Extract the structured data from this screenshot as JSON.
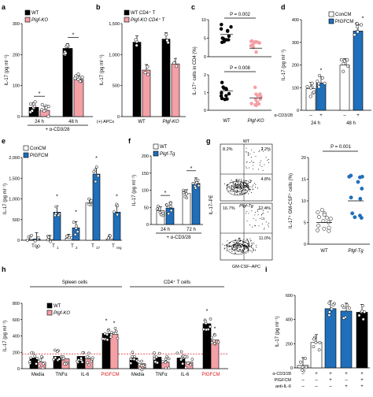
{
  "colors": {
    "wt": "#000000",
    "ko": "#f4a0a6",
    "ko_light": "#f7b8bc",
    "con": "#ffffff",
    "pigf": "#1f6fba",
    "dash": "#e23b3b",
    "pigf_label": "#d7191c",
    "facs_high": "#000000"
  },
  "chart_data": [
    {
      "panel": "a",
      "type": "bar",
      "ylabel": "IL-17 (pg ml⁻¹)",
      "ylim": [
        0,
        300
      ],
      "yticks": [
        "0",
        "100",
        "200",
        "300"
      ],
      "legend": [
        "WT",
        "Plgf-KO"
      ],
      "categories": [
        "24 h",
        "48 h"
      ],
      "footer": "+ α-CD3/28",
      "sig": [
        "*",
        "*"
      ],
      "series": [
        {
          "name": "WT",
          "values": [
            30,
            220
          ]
        },
        {
          "name": "Plgf-KO",
          "values": [
            20,
            120
          ]
        }
      ]
    },
    {
      "panel": "b",
      "type": "bar",
      "ylabel": "IL-17 (pg ml⁻¹)",
      "ylim": [
        0,
        1500
      ],
      "yticks": [
        "0",
        "500",
        "1,000",
        "1,500"
      ],
      "legend": [
        "WT CD4⁺ T",
        "Plgf-KO CD4⁺ T"
      ],
      "categories": [
        "WT",
        "Plgf-KO"
      ],
      "row_label": "(+) APCs",
      "series": [
        {
          "name": "WT CD4⁺ T",
          "values": [
            1200,
            1250
          ]
        },
        {
          "name": "Plgf-KO CD4⁺ T",
          "values": [
            750,
            850
          ]
        }
      ]
    },
    {
      "panel": "c",
      "type": "scatter",
      "ylabel": "IL-17⁺ cells in CD4 (%)",
      "upper": {
        "yticks": [
          "0",
          "5",
          "10"
        ],
        "ylim": [
          0,
          10
        ],
        "pvalue": "P = 0.002",
        "WT_mean": 6,
        "KO_mean": 2.3
      },
      "lower": {
        "yticks": [
          "0",
          "1",
          "2"
        ],
        "ylim": [
          0,
          2
        ],
        "pvalue": "P = 0.008",
        "WT_mean": 1.1,
        "KO_mean": 0.7
      },
      "categories": [
        "WT",
        "Plgf-KO"
      ]
    },
    {
      "panel": "d",
      "type": "bar",
      "ylabel": "IL-17 (pg ml⁻¹)",
      "ylim": [
        0,
        400
      ],
      "yticks": [
        "0",
        "100",
        "200",
        "300",
        "400"
      ],
      "legend": [
        "ConCM",
        "PIGFCM"
      ],
      "row_label": "α-CD3/28",
      "row_values": [
        "–",
        "+",
        "–",
        "+"
      ],
      "categories": [
        "24 h",
        "48 h"
      ],
      "sig": [
        "*",
        "*"
      ],
      "series": [
        {
          "name": "ConCM",
          "values": [
            95,
            200
          ]
        },
        {
          "name": "PIGFCM",
          "values": [
            120,
            350
          ]
        }
      ]
    },
    {
      "panel": "e",
      "type": "bar",
      "ylabel": "IL-17 (pg ml⁻¹)",
      "ylim": [
        0,
        2000
      ],
      "yticks": [
        "0",
        "500",
        "1,000",
        "1,500",
        "2,000"
      ],
      "legend": [
        "ConCM",
        "PIGFCM"
      ],
      "categories": [
        "TH0",
        "TH1",
        "TH2",
        "TH17",
        "Treg"
      ],
      "sig": [
        "*",
        "*",
        "*",
        "*",
        "*"
      ],
      "series": [
        {
          "name": "ConCM",
          "values": [
            10,
            20,
            50,
            900,
            30
          ]
        },
        {
          "name": "PIGFCM",
          "values": [
            30,
            680,
            300,
            1600,
            680
          ]
        }
      ]
    },
    {
      "panel": "f",
      "type": "bar",
      "ylabel": "IL-17 (pg ml⁻¹)",
      "ylim": [
        0,
        200
      ],
      "yticks": [
        "0",
        "50",
        "100",
        "150",
        "200"
      ],
      "legend": [
        "WT",
        "Plgf-Tg"
      ],
      "categories": [
        "24 h",
        "72 h"
      ],
      "footer": "+ α-CD3/28",
      "sig": [
        "*",
        "*"
      ],
      "series": [
        {
          "name": "WT",
          "values": [
            40,
            90
          ]
        },
        {
          "name": "Plgf-Tg",
          "values": [
            48,
            120
          ]
        }
      ]
    },
    {
      "panel": "g",
      "type": "flow+scatter",
      "flow": {
        "xlabel": "GM-CSF–APC",
        "ylabel": "IL-17–PE",
        "top": {
          "label": "WT",
          "q": [
            "8.2%",
            "2.2%",
            "4.8%"
          ],
          "genotype": "Plgf-Tg"
        },
        "bottom": {
          "q": [
            "16.7%",
            "12.4%",
            "11.0%"
          ]
        }
      },
      "scatter": {
        "ylabel": "IL-17⁺ GM-CSF⁺ cells (%)",
        "ylim": [
          0,
          20
        ],
        "yticks": [
          "0",
          "5",
          "10",
          "15",
          "20"
        ],
        "pvalue": "P = 0.001",
        "categories": [
          "WT",
          "Plgf-Tg"
        ],
        "WT_mean": 5,
        "Tg_mean": 10
      }
    },
    {
      "panel": "h",
      "type": "bar",
      "ylabel": "IL-17 (pg ml⁻¹)",
      "ylim": [
        0,
        800
      ],
      "yticks": [
        "0",
        "200",
        "400",
        "600",
        "800"
      ],
      "legend": [
        "WT",
        "Plgf-KO"
      ],
      "groups": [
        "Spleen cells",
        "CD4⁺ T cells"
      ],
      "categories": [
        "Media",
        "TNFα",
        "IL-6",
        "PIGFCM",
        "Media",
        "TNFα",
        "IL-6",
        "PIGFCM"
      ],
      "series": [
        {
          "name": "WT",
          "values": [
            130,
            150,
            150,
            430,
            130,
            140,
            130,
            550
          ]
        },
        {
          "name": "Plgf-KO",
          "values": [
            80,
            120,
            120,
            420,
            60,
            80,
            80,
            350
          ]
        }
      ],
      "reference_line": 180
    },
    {
      "panel": "i",
      "type": "bar",
      "ylabel": "IL-17 (pg ml⁻¹)",
      "ylim": [
        0,
        600
      ],
      "yticks": [
        "0",
        "200",
        "400",
        "600"
      ],
      "row_labels": [
        "α-CD3/28",
        "PIGFCM",
        "anti-IL-6"
      ],
      "row_values": [
        [
          "–",
          "+",
          "+",
          "+",
          "+"
        ],
        [
          "–",
          "–",
          "+",
          "–",
          "+"
        ],
        [
          "–",
          "–",
          "–",
          "+",
          "+"
        ]
      ],
      "values": [
        20,
        210,
        490,
        470,
        460
      ],
      "colors": [
        "white",
        "white",
        "blue",
        "blue",
        "black"
      ]
    }
  ],
  "panel_labels": [
    "a",
    "b",
    "c",
    "d",
    "e",
    "f",
    "g",
    "h",
    "i"
  ]
}
